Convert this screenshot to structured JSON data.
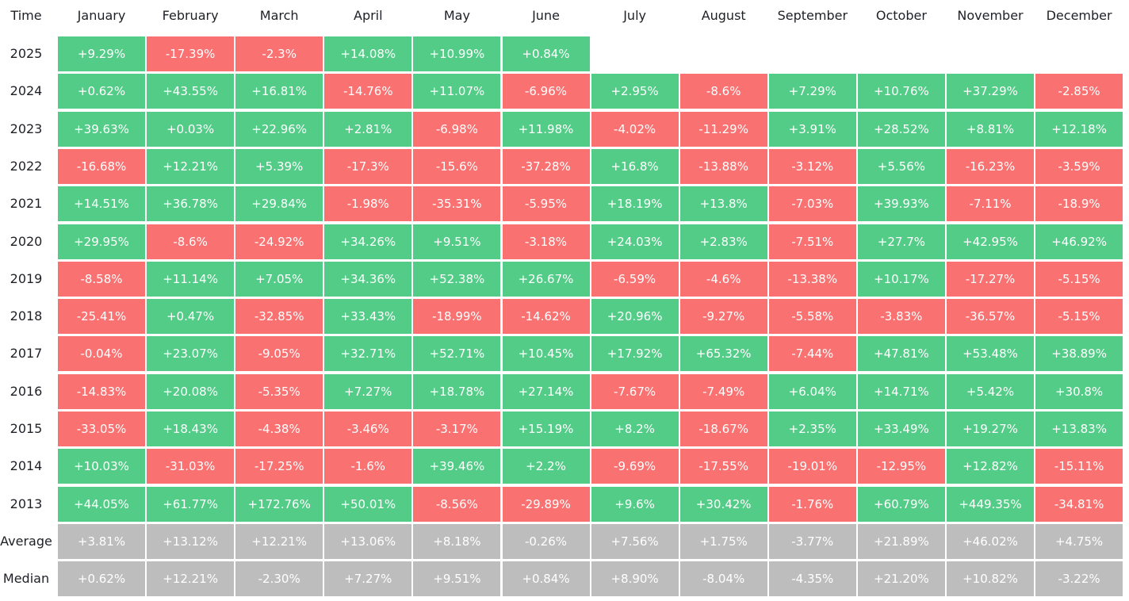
{
  "colors": {
    "positive": "#53cc87",
    "negative": "#f97171",
    "summary": "#bdbdbd",
    "header_text": "#1e2026",
    "cell_text": "#ffffff"
  },
  "chart_data": {
    "type": "table",
    "corner_label": "Time",
    "columns": [
      "January",
      "February",
      "March",
      "April",
      "May",
      "June",
      "July",
      "August",
      "September",
      "October",
      "November",
      "December"
    ],
    "rows": [
      {
        "label": "2025",
        "cells": [
          "+9.29%",
          "-17.39%",
          "-2.3%",
          "+14.08%",
          "+10.99%",
          "+0.84%",
          "",
          "",
          "",
          "",
          "",
          ""
        ]
      },
      {
        "label": "2024",
        "cells": [
          "+0.62%",
          "+43.55%",
          "+16.81%",
          "-14.76%",
          "+11.07%",
          "-6.96%",
          "+2.95%",
          "-8.6%",
          "+7.29%",
          "+10.76%",
          "+37.29%",
          "-2.85%"
        ]
      },
      {
        "label": "2023",
        "cells": [
          "+39.63%",
          "+0.03%",
          "+22.96%",
          "+2.81%",
          "-6.98%",
          "+11.98%",
          "-4.02%",
          "-11.29%",
          "+3.91%",
          "+28.52%",
          "+8.81%",
          "+12.18%"
        ]
      },
      {
        "label": "2022",
        "cells": [
          "-16.68%",
          "+12.21%",
          "+5.39%",
          "-17.3%",
          "-15.6%",
          "-37.28%",
          "+16.8%",
          "-13.88%",
          "-3.12%",
          "+5.56%",
          "-16.23%",
          "-3.59%"
        ]
      },
      {
        "label": "2021",
        "cells": [
          "+14.51%",
          "+36.78%",
          "+29.84%",
          "-1.98%",
          "-35.31%",
          "-5.95%",
          "+18.19%",
          "+13.8%",
          "-7.03%",
          "+39.93%",
          "-7.11%",
          "-18.9%"
        ]
      },
      {
        "label": "2020",
        "cells": [
          "+29.95%",
          "-8.6%",
          "-24.92%",
          "+34.26%",
          "+9.51%",
          "-3.18%",
          "+24.03%",
          "+2.83%",
          "-7.51%",
          "+27.7%",
          "+42.95%",
          "+46.92%"
        ]
      },
      {
        "label": "2019",
        "cells": [
          "-8.58%",
          "+11.14%",
          "+7.05%",
          "+34.36%",
          "+52.38%",
          "+26.67%",
          "-6.59%",
          "-4.6%",
          "-13.38%",
          "+10.17%",
          "-17.27%",
          "-5.15%"
        ]
      },
      {
        "label": "2018",
        "cells": [
          "-25.41%",
          "+0.47%",
          "-32.85%",
          "+33.43%",
          "-18.99%",
          "-14.62%",
          "+20.96%",
          "-9.27%",
          "-5.58%",
          "-3.83%",
          "-36.57%",
          "-5.15%"
        ]
      },
      {
        "label": "2017",
        "cells": [
          "-0.04%",
          "+23.07%",
          "-9.05%",
          "+32.71%",
          "+52.71%",
          "+10.45%",
          "+17.92%",
          "+65.32%",
          "-7.44%",
          "+47.81%",
          "+53.48%",
          "+38.89%"
        ]
      },
      {
        "label": "2016",
        "cells": [
          "-14.83%",
          "+20.08%",
          "-5.35%",
          "+7.27%",
          "+18.78%",
          "+27.14%",
          "-7.67%",
          "-7.49%",
          "+6.04%",
          "+14.71%",
          "+5.42%",
          "+30.8%"
        ]
      },
      {
        "label": "2015",
        "cells": [
          "-33.05%",
          "+18.43%",
          "-4.38%",
          "-3.46%",
          "-3.17%",
          "+15.19%",
          "+8.2%",
          "-18.67%",
          "+2.35%",
          "+33.49%",
          "+19.27%",
          "+13.83%"
        ]
      },
      {
        "label": "2014",
        "cells": [
          "+10.03%",
          "-31.03%",
          "-17.25%",
          "-1.6%",
          "+39.46%",
          "+2.2%",
          "-9.69%",
          "-17.55%",
          "-19.01%",
          "-12.95%",
          "+12.82%",
          "-15.11%"
        ]
      },
      {
        "label": "2013",
        "cells": [
          "+44.05%",
          "+61.77%",
          "+172.76%",
          "+50.01%",
          "-8.56%",
          "-29.89%",
          "+9.6%",
          "+30.42%",
          "-1.76%",
          "+60.79%",
          "+449.35%",
          "-34.81%"
        ]
      }
    ],
    "summary_rows": [
      {
        "label": "Average",
        "cells": [
          "+3.81%",
          "+13.12%",
          "+12.21%",
          "+13.06%",
          "+8.18%",
          "-0.26%",
          "+7.56%",
          "+1.75%",
          "-3.77%",
          "+21.89%",
          "+46.02%",
          "+4.75%"
        ]
      },
      {
        "label": "Median",
        "cells": [
          "+0.62%",
          "+12.21%",
          "-2.30%",
          "+7.27%",
          "+9.51%",
          "+0.84%",
          "+8.90%",
          "-8.04%",
          "-4.35%",
          "+21.20%",
          "+10.82%",
          "-3.22%"
        ]
      }
    ]
  }
}
